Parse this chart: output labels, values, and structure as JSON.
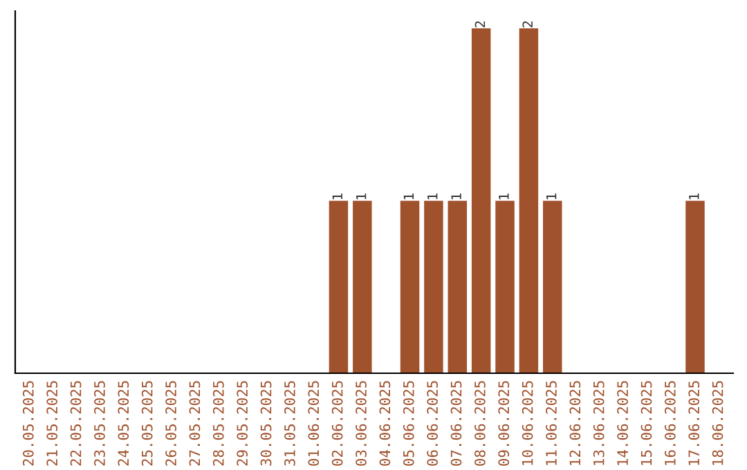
{
  "chart_data": {
    "type": "bar",
    "categories": [
      "20.05.2025",
      "21.05.2025",
      "22.05.2025",
      "23.05.2025",
      "24.05.2025",
      "25.05.2025",
      "26.05.2025",
      "27.05.2025",
      "28.05.2025",
      "29.05.2025",
      "30.05.2025",
      "31.05.2025",
      "01.06.2025",
      "02.06.2025",
      "03.06.2025",
      "04.06.2025",
      "05.06.2025",
      "06.06.2025",
      "07.06.2025",
      "08.06.2025",
      "09.06.2025",
      "10.06.2025",
      "11.06.2025",
      "12.06.2025",
      "13.06.2025",
      "14.06.2025",
      "15.06.2025",
      "16.06.2025",
      "17.06.2025",
      "18.06.2025"
    ],
    "values": [
      null,
      null,
      null,
      null,
      null,
      null,
      null,
      null,
      null,
      null,
      null,
      null,
      null,
      1,
      1,
      null,
      1,
      1,
      1,
      2,
      1,
      2,
      1,
      null,
      null,
      null,
      null,
      null,
      1,
      null
    ],
    "color": "#a0522d",
    "data_labels": true,
    "tick_labels": "x",
    "grid": false,
    "legend": false
  }
}
